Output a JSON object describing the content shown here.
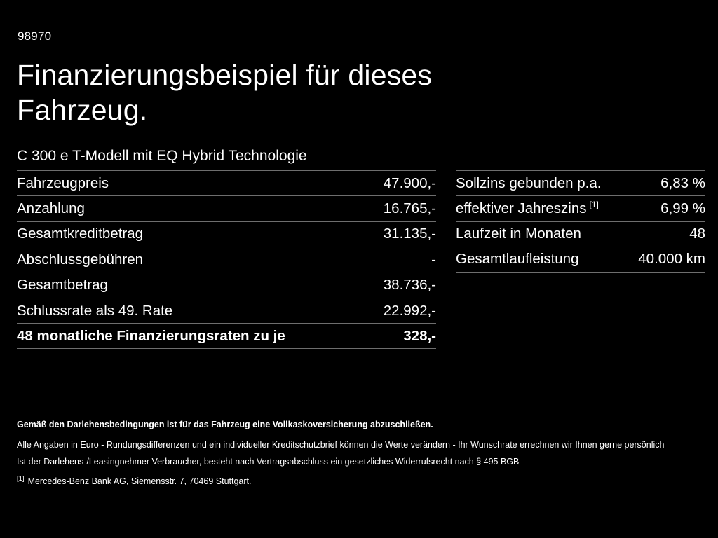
{
  "page": {
    "vehicle_id": "98970",
    "title": "Finanzierungsbeispiel für dieses Fahrzeug.",
    "subtitle": "C 300 e T-Modell mit EQ Hybrid Technologie"
  },
  "left_table": {
    "rows": [
      {
        "label": "Fahrzeugpreis",
        "value": "47.900,-"
      },
      {
        "label": "Anzahlung",
        "value": "16.765,-"
      },
      {
        "label": "Gesamtkreditbetrag",
        "value": "31.135,-"
      },
      {
        "label": "Abschlussgebühren",
        "value": "-"
      },
      {
        "label": "Gesamtbetrag",
        "value": "38.736,-"
      },
      {
        "label": "Schlussrate als 49. Rate",
        "value": "22.992,-"
      },
      {
        "label": "48 monatliche Finanzierungsraten zu je",
        "value": "328,-"
      }
    ]
  },
  "right_table": {
    "rows": [
      {
        "label": "Sollzins gebunden p.a.",
        "sup": "",
        "value": "6,83 %"
      },
      {
        "label": "effektiver Jahreszins",
        "sup": "[1]",
        "value": "6,99 %"
      },
      {
        "label": "Laufzeit in Monaten",
        "sup": "",
        "value": "48"
      },
      {
        "label": "Gesamtlaufleistung",
        "sup": "",
        "value": "40.000 km"
      }
    ]
  },
  "footnotes": {
    "bold_note": "Gemäß den Darlehensbedingungen ist für das Fahrzeug eine Vollkaskoversicherung abzuschließen.",
    "note1": "Alle Angaben in Euro - Rundungsdifferenzen und ein individueller Kreditschutzbrief können die Werte verändern - Ihr Wunschrate errechnen wir Ihnen gerne persönlich",
    "note2": "Ist der Darlehens-/Leasingnehmer Verbraucher, besteht nach Vertragsabschluss ein gesetzliches Widerrufsrecht nach § 495 BGB",
    "ref_marker": "[1]",
    "ref_text": "Mercedes-Benz Bank AG, Siemensstr. 7, 70469 Stuttgart."
  },
  "colors": {
    "background": "#000000",
    "text": "#ffffff",
    "divider": "#6e6e6e"
  }
}
